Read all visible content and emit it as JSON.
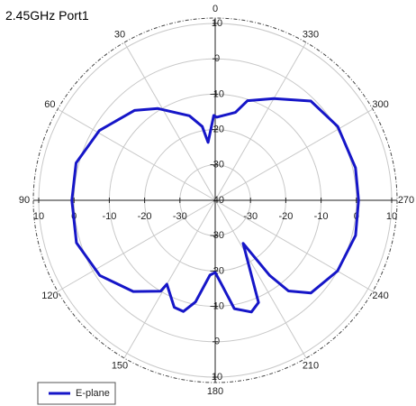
{
  "chart_data": {
    "type": "polar",
    "title": "2.45GHz Port1",
    "rlim": [
      -40,
      10
    ],
    "rticks": [
      -40,
      -30,
      -20,
      -10,
      0,
      10
    ],
    "thetaticks": [
      0,
      30,
      60,
      90,
      120,
      150,
      180,
      210,
      240,
      270,
      300,
      330
    ],
    "theta_direction": "counterclockwise",
    "theta_zero": "top",
    "grid": true,
    "legend": "lower left",
    "series": [
      {
        "name": "E-plane",
        "color": "#1616c8",
        "theta": [
          1,
          7,
          10,
          17,
          32,
          42,
          59,
          75,
          90,
          107,
          123,
          138,
          149,
          150,
          159,
          164,
          169,
          176,
          180,
          185,
          190,
          198,
          203,
          213,
          216,
          219,
          226,
          240,
          256,
          270,
          283,
          301,
          316,
          330,
          342,
          347,
          359
        ],
        "r": [
          -16,
          -23.5,
          -18.8,
          -15,
          -9.4,
          -5.8,
          -1.7,
          0.8,
          0.6,
          1.1,
          -1,
          -5.3,
          -10,
          -12.6,
          -7.6,
          -7.3,
          -10.7,
          -18.8,
          -19.6,
          -15.5,
          -8.9,
          -6.8,
          -8.6,
          -25.5,
          -13.7,
          -7,
          -2.3,
          0,
          1,
          0.6,
          0.8,
          0.5,
          -1,
          -6.8,
          -10.4,
          -14.5,
          -16.5
        ]
      }
    ]
  }
}
